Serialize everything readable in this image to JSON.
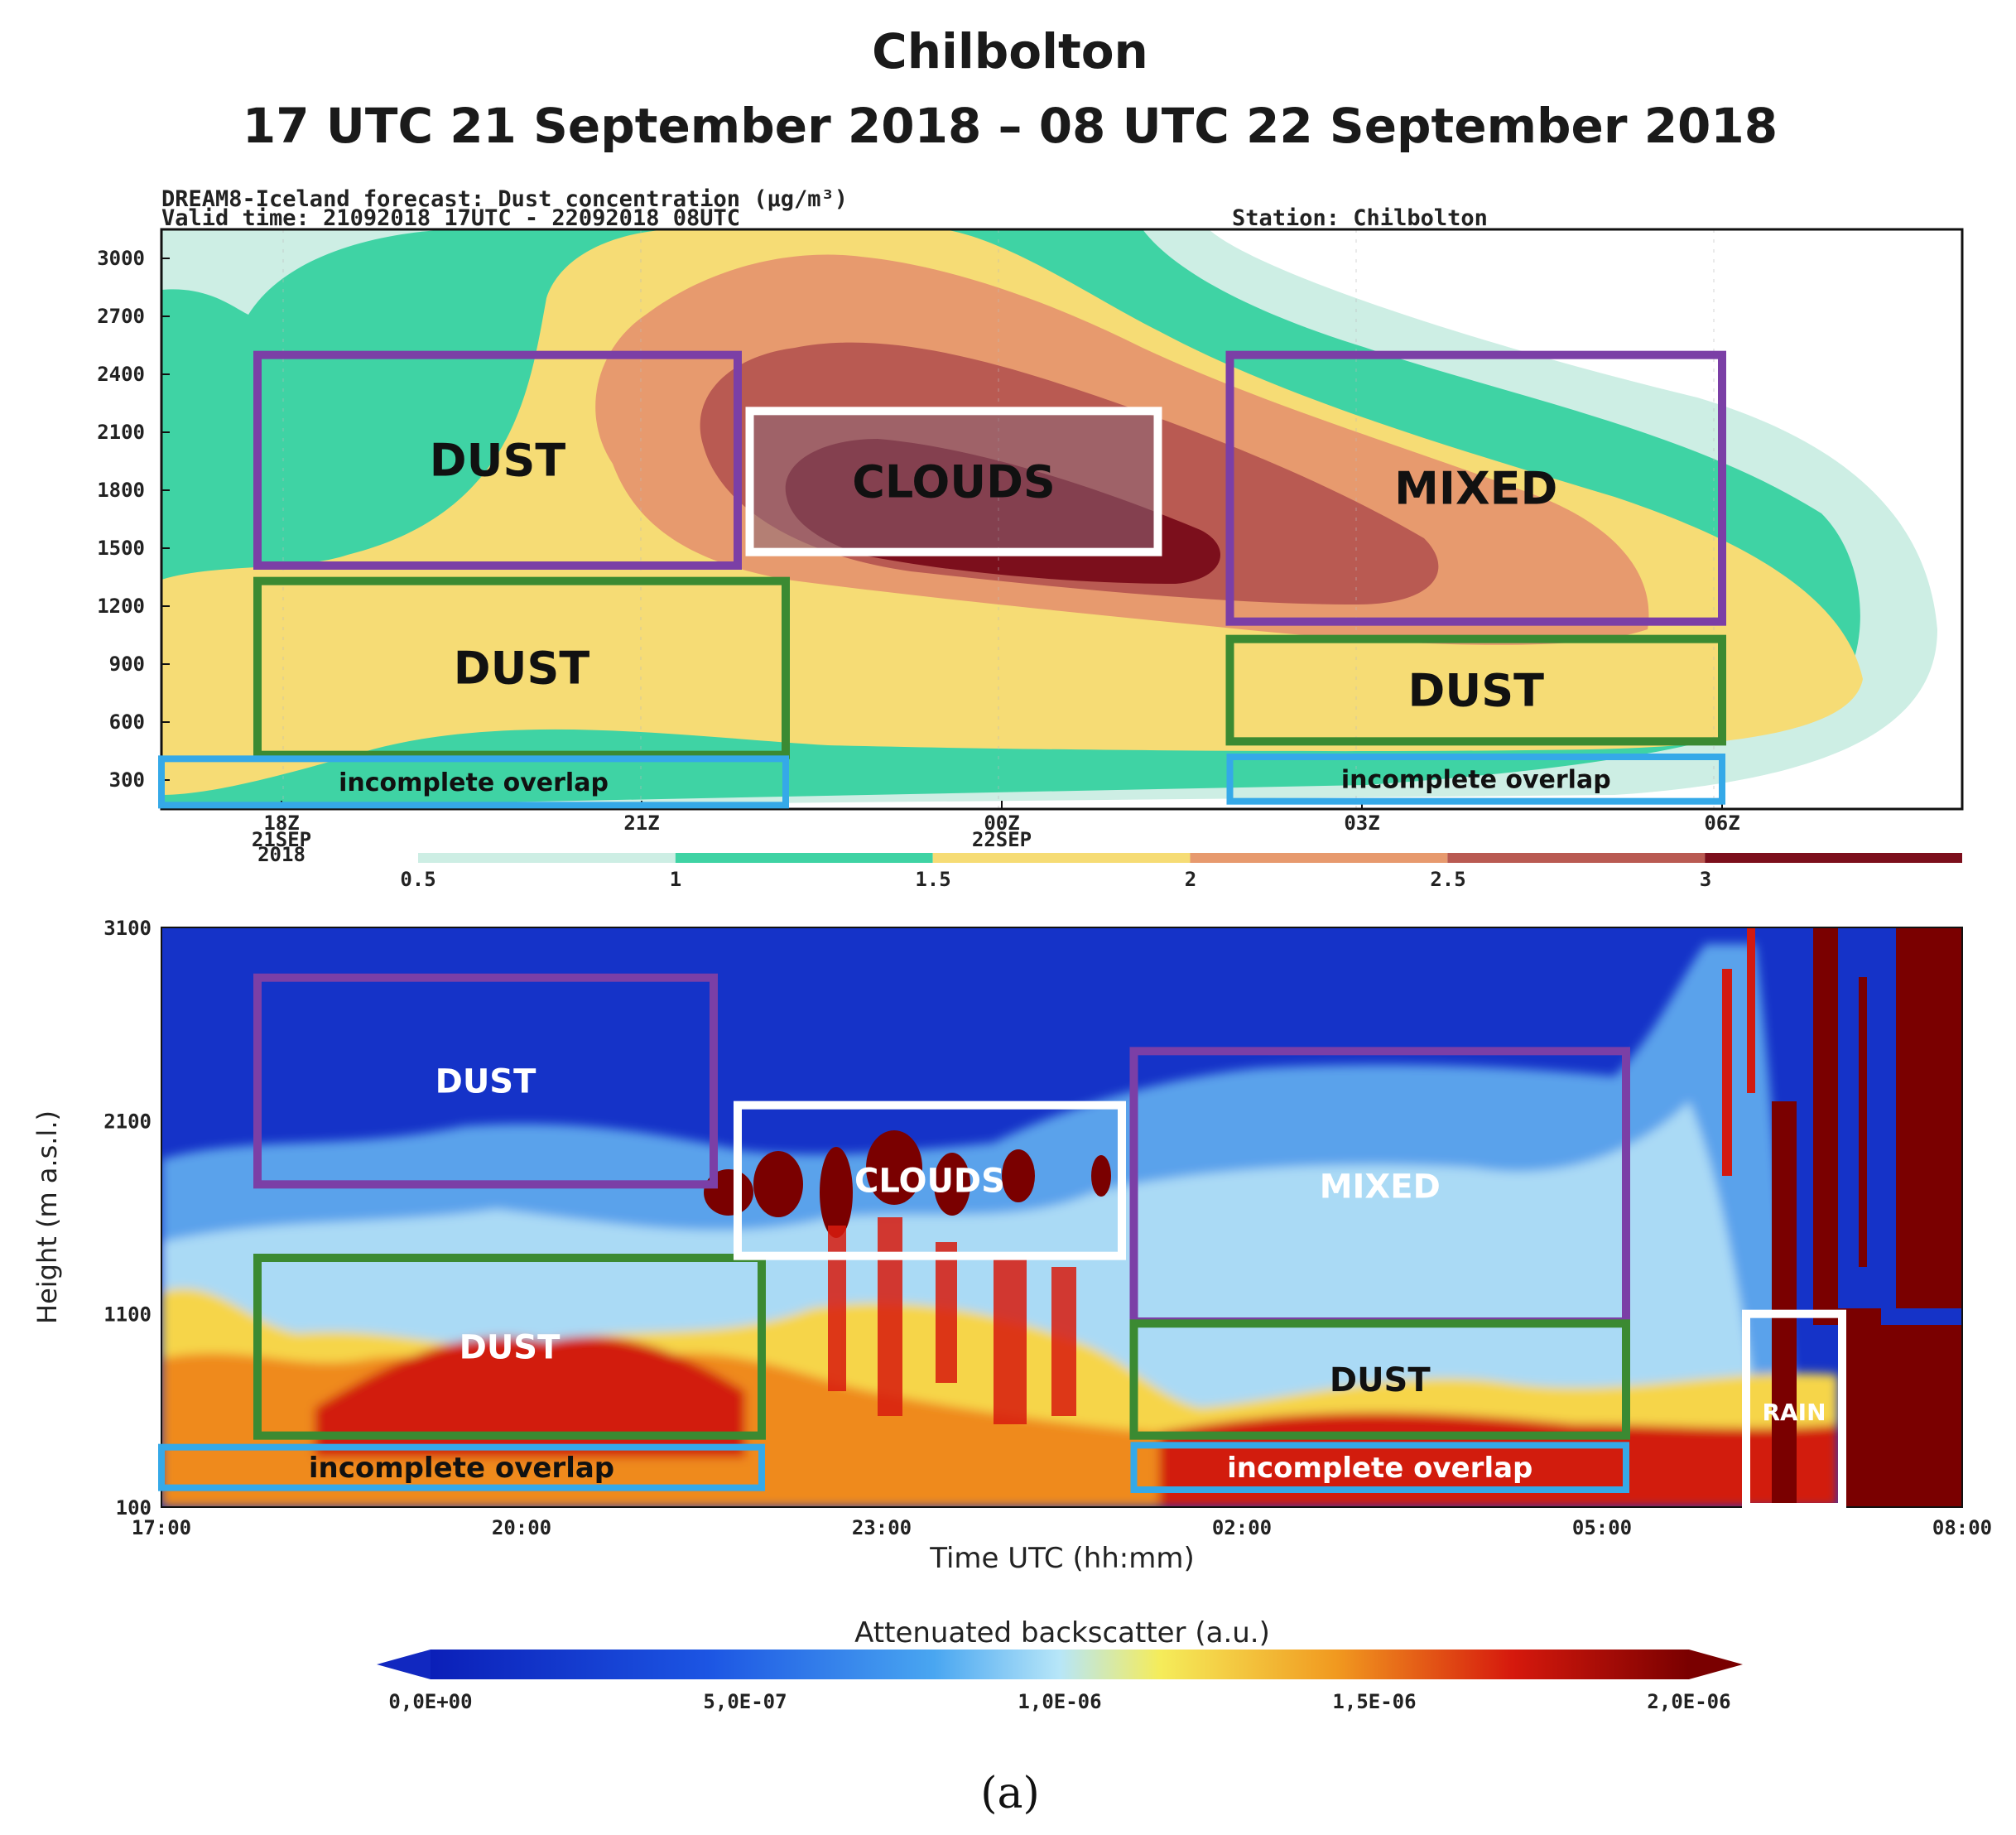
{
  "figure": {
    "title_line1": "Chilbolton",
    "title_line2": "17 UTC 21 September 2018 – 08 UTC 22 September 2018",
    "panel_label": "(a)"
  },
  "colors": {
    "forecast_levels": [
      "#cdeee4",
      "#3fd3a4",
      "#f6dc75",
      "#e79a6e",
      "#b95a52",
      "#7c0f1c"
    ],
    "box_dust_upper": "#7b3fa6",
    "box_dust_lower": "#3b8a32",
    "box_overlap": "#35a9e8",
    "box_clouds": "#ffffff",
    "lidar_background": "#1533c8"
  },
  "chart_data": [
    {
      "type": "heatmap",
      "header_line1": "DREAM8-Iceland forecast: Dust concentration (μg/m³)",
      "header_line2": "Valid time: 21092018 17UTC - 22092018 08UTC",
      "station": "Station: Chilbolton",
      "y_ticks": [
        "3000",
        "2700",
        "2400",
        "2100",
        "1800",
        "1500",
        "1200",
        "900",
        "600",
        "300"
      ],
      "y_range": [
        150,
        3150
      ],
      "x_range_hours": [
        17,
        32
      ],
      "x_ticks": [
        {
          "hour": 18,
          "label": "18Z",
          "sub": [
            "21SEP",
            "2018"
          ]
        },
        {
          "hour": 21,
          "label": "21Z",
          "sub": []
        },
        {
          "hour": 24,
          "label": "00Z",
          "sub": [
            "22SEP"
          ]
        },
        {
          "hour": 27,
          "label": "03Z",
          "sub": []
        },
        {
          "hour": 30,
          "label": "06Z",
          "sub": []
        }
      ],
      "colorbar_ticks": [
        "0.5",
        "1",
        "1.5",
        "2",
        "2.5",
        "3"
      ],
      "annotations": [
        {
          "label": "DUST",
          "kind": "dust_upper",
          "t0": 17.8,
          "t1": 21.8,
          "h0": 1410,
          "h1": 2500
        },
        {
          "label": "DUST",
          "kind": "dust_lower",
          "t0": 17.8,
          "t1": 22.2,
          "h0": 430,
          "h1": 1330
        },
        {
          "label": "incomplete overlap",
          "kind": "overlap",
          "t0": 17.0,
          "t1": 22.2,
          "h0": 170,
          "h1": 410
        },
        {
          "label": "CLOUDS",
          "kind": "clouds",
          "t0": 21.9,
          "t1": 25.3,
          "h0": 1480,
          "h1": 2210
        },
        {
          "label": "MIXED",
          "kind": "mixed",
          "t0": 25.9,
          "t1": 30.0,
          "h0": 1120,
          "h1": 2500
        },
        {
          "label": "DUST",
          "kind": "dust_lower",
          "t0": 25.9,
          "t1": 30.0,
          "h0": 500,
          "h1": 1030
        },
        {
          "label": "incomplete overlap",
          "kind": "overlap",
          "t0": 25.9,
          "t1": 30.0,
          "h0": 190,
          "h1": 420
        }
      ]
    },
    {
      "type": "heatmap",
      "ylabel": "Height (m a.s.l.)",
      "xlabel": "Time UTC (hh:mm)",
      "y_range": [
        100,
        3100
      ],
      "y_ticks": [
        "3100",
        "2100",
        "1100",
        "100"
      ],
      "x_range_hours": [
        17,
        32
      ],
      "x_ticks": [
        "17:00",
        "20:00",
        "23:00",
        "02:00",
        "05:00",
        "08:00"
      ],
      "colorbar_title": "Attenuated backscatter (a.u.)",
      "colorbar_ticks": [
        "0,0E+00",
        "5,0E-07",
        "1,0E-06",
        "1,5E-06",
        "2,0E-06"
      ],
      "colorbar_range": [
        0,
        2e-06
      ],
      "annotations": [
        {
          "label": "DUST",
          "kind": "dust_upper",
          "t0": 17.8,
          "t1": 21.6,
          "h0": 1770,
          "h1": 2840
        },
        {
          "label": "DUST",
          "kind": "dust_lower",
          "t0": 17.8,
          "t1": 22.0,
          "h0": 470,
          "h1": 1390
        },
        {
          "label": "incomplete overlap",
          "kind": "overlap",
          "t0": 17.0,
          "t1": 22.0,
          "h0": 200,
          "h1": 410
        },
        {
          "label": "CLOUDS",
          "kind": "clouds",
          "t0": 21.8,
          "t1": 25.0,
          "h0": 1400,
          "h1": 2180
        },
        {
          "label": "MIXED",
          "kind": "mixed",
          "t0": 25.1,
          "t1": 29.2,
          "h0": 1060,
          "h1": 2460
        },
        {
          "label": "DUST",
          "kind": "dust_lower",
          "t0": 25.1,
          "t1": 29.2,
          "h0": 470,
          "h1": 1050
        },
        {
          "label": "incomplete overlap",
          "kind": "overlap",
          "t0": 25.1,
          "t1": 29.2,
          "h0": 190,
          "h1": 420
        },
        {
          "label": "RAIN",
          "kind": "rain",
          "t0": 30.2,
          "t1": 31.0,
          "h0": 100,
          "h1": 1100
        }
      ]
    }
  ]
}
